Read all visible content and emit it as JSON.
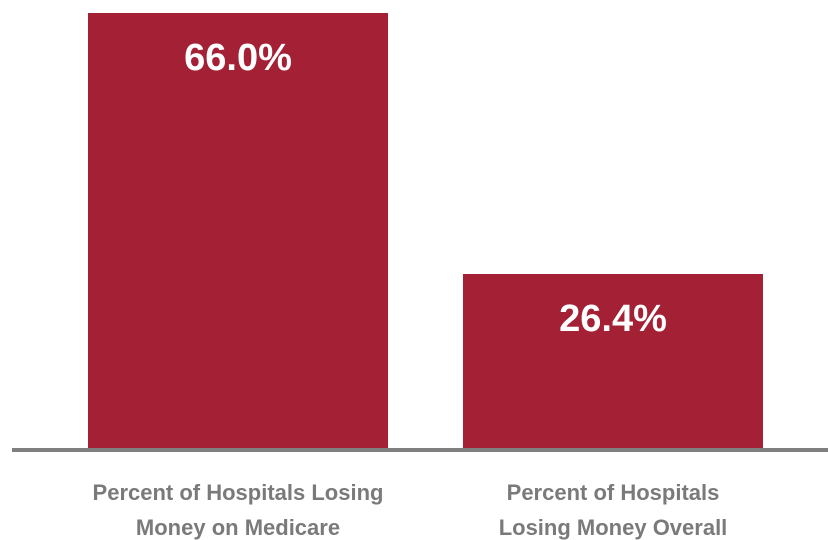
{
  "chart_data": {
    "type": "bar",
    "categories": [
      "Percent of Hospitals Losing Money on Medicare",
      "Percent of Hospitals Losing Money Overall"
    ],
    "category_label_lines": [
      [
        "Percent of Hospitals Losing",
        "Money on Medicare"
      ],
      [
        "Percent of Hospitals",
        "Losing Money Overall"
      ]
    ],
    "values": [
      66.0,
      26.4
    ],
    "data_labels": [
      "66.0%",
      "26.4%"
    ],
    "value_unit": "%",
    "title": "",
    "xlabel": "",
    "ylabel": "",
    "ylim": [
      0,
      66.0
    ],
    "grid": false,
    "legend": "none",
    "colors": {
      "bar": "#a32035",
      "axis": "#7f7f7f",
      "label_text": "#7a7a7a",
      "value_text": "#ffffff"
    }
  }
}
